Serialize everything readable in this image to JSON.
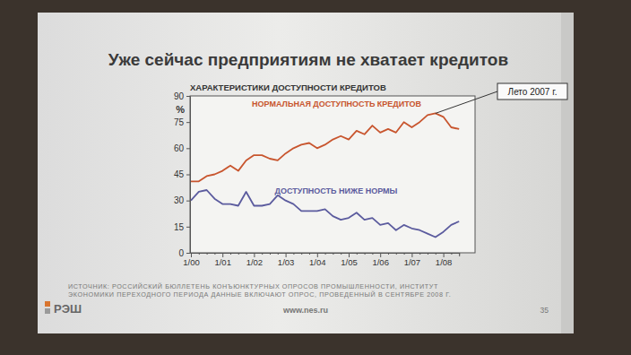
{
  "chart_data": {
    "type": "line",
    "title": "Уже сейчас предприятиям не хватает кредитов",
    "subtitle": "ХАРАКТЕРИСТИКИ ДОСТУПНОСТИ КРЕДИТОВ",
    "ylabel": "%",
    "categories": [
      "1/00",
      null,
      null,
      null,
      "1/01",
      null,
      null,
      null,
      "1/02",
      null,
      null,
      null,
      "1/03",
      null,
      null,
      null,
      "1/04",
      null,
      null,
      null,
      "1/05",
      null,
      null,
      null,
      "1/06",
      null,
      null,
      null,
      "1/07",
      null,
      null,
      null,
      "1/08",
      null,
      null
    ],
    "series": [
      {
        "name": "НОРМАЛЬНАЯ ДОСТУПНОСТЬ КРЕДИТОВ",
        "color": "#c8552e",
        "values": [
          41,
          41,
          44,
          45,
          47,
          50,
          47,
          53,
          56,
          56,
          54,
          53,
          57,
          60,
          62,
          63,
          60,
          62,
          65,
          67,
          65,
          70,
          68,
          73,
          69,
          71,
          69,
          75,
          72,
          75,
          79,
          80,
          78,
          72,
          71
        ]
      },
      {
        "name": "ДОСТУПНОСТЬ НИЖЕ НОРМЫ",
        "color": "#5b5b9e",
        "values": [
          30,
          35,
          36,
          31,
          28,
          28,
          27,
          35,
          27,
          27,
          28,
          33,
          30,
          28,
          24,
          24,
          24,
          25,
          21,
          19,
          20,
          23,
          19,
          20,
          16,
          17,
          13,
          16,
          14,
          13,
          11,
          9,
          12,
          16,
          18
        ]
      }
    ],
    "ylim": [
      0,
      90
    ],
    "yticks": [
      0,
      15,
      30,
      45,
      60,
      75,
      90
    ],
    "grid": false,
    "annotations": [
      {
        "text": "Лето 2007 г."
      }
    ],
    "source": [
      "ИСТОЧНИК: РОССИЙСКИЙ БЮЛЛЕТЕНЬ КОНЪЮНКТУРНЫХ ОПРОСОВ ПРОМЫШЛЕННОСТИ, ИНСТИТУТ",
      "ЭКОНОМИКИ ПЕРЕХОДНОГО ПЕРИОДА ДАННЫЕ ВКЛЮЧАЮТ ОПРОС, ПРОВЕДЕННЫЙ В СЕНТЯБРЕ 2008 Г."
    ],
    "footer": {
      "logo": "РЭШ",
      "url": "www.nes.ru",
      "page": 35
    }
  }
}
